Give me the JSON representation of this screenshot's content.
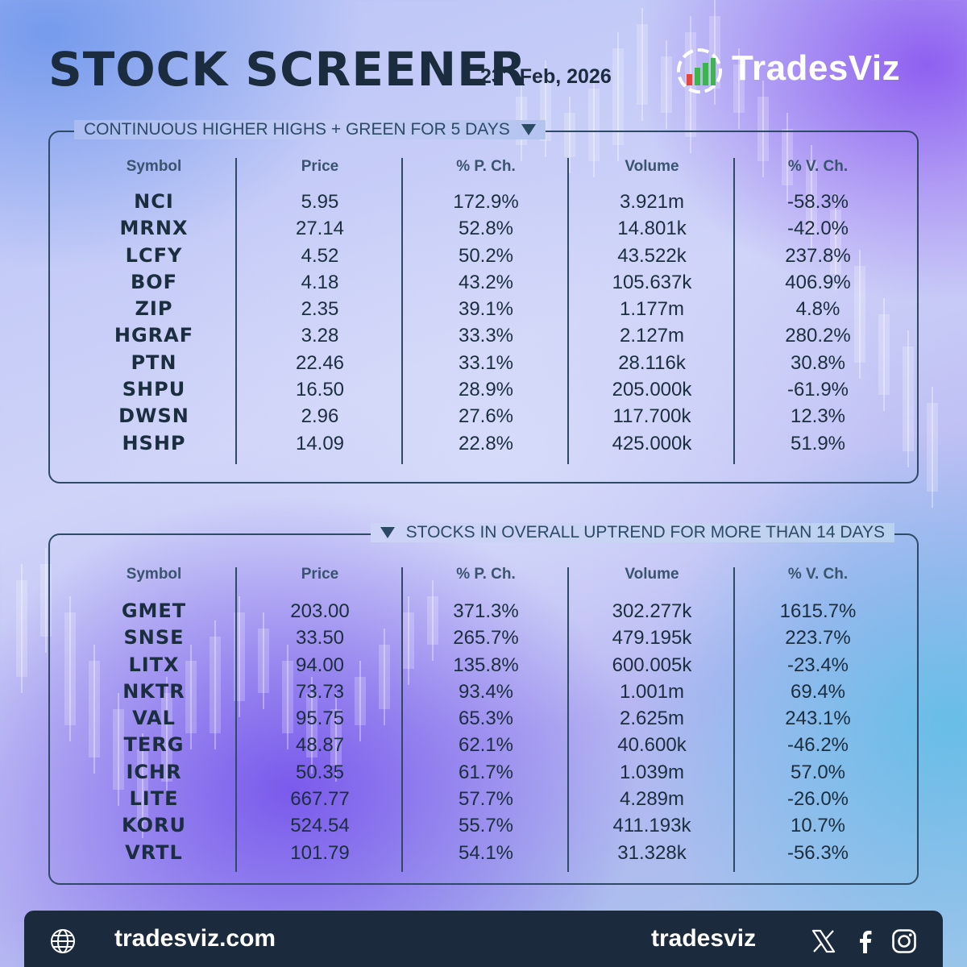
{
  "header": {
    "title": "STOCK SCREENER",
    "date_day": "23",
    "date_suffix": "rd",
    "date_rest": "Feb, 2026",
    "brand": "TradesViz"
  },
  "columns": [
    "Symbol",
    "Price",
    "% P. Ch.",
    "Volume",
    "% V. Ch."
  ],
  "panels": [
    {
      "title": "CONTINUOUS HIGHER HIGHS + GREEN FOR 5 DAYS",
      "rows": [
        [
          "NCI",
          "5.95",
          "172.9%",
          "3.921m",
          "-58.3%"
        ],
        [
          "MRNX",
          "27.14",
          "52.8%",
          "14.801k",
          "-42.0%"
        ],
        [
          "LCFY",
          "4.52",
          "50.2%",
          "43.522k",
          "237.8%"
        ],
        [
          "BOF",
          "4.18",
          "43.2%",
          "105.637k",
          "406.9%"
        ],
        [
          "ZIP",
          "2.35",
          "39.1%",
          "1.177m",
          "4.8%"
        ],
        [
          "HGRAF",
          "3.28",
          "33.3%",
          "2.127m",
          "280.2%"
        ],
        [
          "PTN",
          "22.46",
          "33.1%",
          "28.116k",
          "30.8%"
        ],
        [
          "SHPU",
          "16.50",
          "28.9%",
          "205.000k",
          "-61.9%"
        ],
        [
          "DWSN",
          "2.96",
          "27.6%",
          "117.700k",
          "12.3%"
        ],
        [
          "HSHP",
          "14.09",
          "22.8%",
          "425.000k",
          "51.9%"
        ]
      ]
    },
    {
      "title": "STOCKS IN OVERALL UPTREND FOR MORE THAN 14 DAYS",
      "rows": [
        [
          "GMET",
          "203.00",
          "371.3%",
          "302.277k",
          "1615.7%"
        ],
        [
          "SNSE",
          "33.50",
          "265.7%",
          "479.195k",
          "223.7%"
        ],
        [
          "LITX",
          "94.00",
          "135.8%",
          "600.005k",
          "-23.4%"
        ],
        [
          "NKTR",
          "73.73",
          "93.4%",
          "1.001m",
          "69.4%"
        ],
        [
          "VAL",
          "95.75",
          "65.3%",
          "2.625m",
          "243.1%"
        ],
        [
          "TERG",
          "48.87",
          "62.1%",
          "40.600k",
          "-46.2%"
        ],
        [
          "ICHR",
          "50.35",
          "61.7%",
          "1.039m",
          "57.0%"
        ],
        [
          "LITE",
          "667.77",
          "57.7%",
          "4.289m",
          "-26.0%"
        ],
        [
          "KORU",
          "524.54",
          "55.7%",
          "411.193k",
          "10.7%"
        ],
        [
          "VRTL",
          "101.79",
          "54.1%",
          "31.328k",
          "-56.3%"
        ]
      ]
    }
  ],
  "footer": {
    "website": "tradesviz.com",
    "handle": "tradesviz",
    "icons": [
      "globe-icon",
      "x-icon",
      "facebook-icon",
      "instagram-icon"
    ]
  },
  "colors": {
    "text": "#1b2e3f",
    "border": "#2f4a66",
    "footer_bg": "#1c2a3d",
    "logo_green": "#3fb34f",
    "logo_red": "#e2463f"
  }
}
